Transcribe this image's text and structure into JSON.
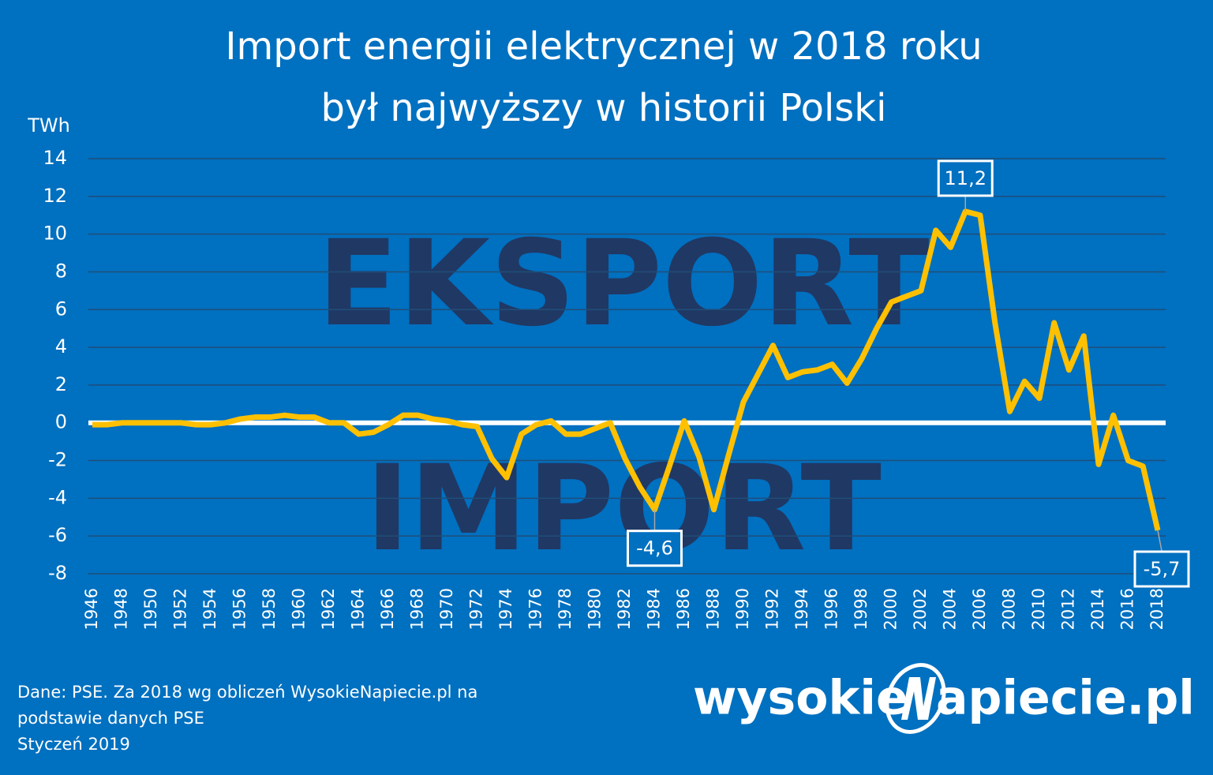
{
  "chart_data": {
    "type": "line",
    "title_lines": [
      "Import energii elektrycznej w 2018 roku",
      "był najwyższy w historii Polski"
    ],
    "y_label": "TWh",
    "watermarks": [
      "EKSPORT",
      "IMPORT"
    ],
    "source_lines": [
      "Dane: PSE. Za 2018 wg obliczeń WysokieNapiecie.pl na",
      "podstawie danych PSE",
      "Styczeń 2019"
    ],
    "logo": [
      "wysokie",
      "apiecie.pl"
    ],
    "x": [
      1946,
      1947,
      1948,
      1949,
      1950,
      1951,
      1952,
      1953,
      1954,
      1955,
      1956,
      1957,
      1958,
      1959,
      1960,
      1961,
      1962,
      1963,
      1964,
      1965,
      1966,
      1967,
      1968,
      1969,
      1970,
      1971,
      1972,
      1973,
      1974,
      1975,
      1976,
      1977,
      1978,
      1979,
      1980,
      1981,
      1982,
      1983,
      1984,
      1985,
      1986,
      1987,
      1988,
      1989,
      1990,
      1991,
      1992,
      1993,
      1994,
      1995,
      1996,
      1997,
      1998,
      1999,
      2000,
      2001,
      2002,
      2003,
      2004,
      2005,
      2006,
      2007,
      2008,
      2009,
      2010,
      2011,
      2012,
      2013,
      2014,
      2015,
      2016,
      2017,
      2018
    ],
    "series": [
      {
        "color": "#ffc000",
        "values": [
          -0.1,
          -0.1,
          0,
          0,
          0,
          0,
          0,
          -0.1,
          -0.1,
          0,
          0.2,
          0.3,
          0.3,
          0.4,
          0.3,
          0.3,
          0,
          0,
          -0.6,
          -0.5,
          -0.1,
          0.4,
          0.4,
          0.2,
          0.1,
          -0.1,
          -0.2,
          -1.9,
          -2.9,
          -0.6,
          -0.1,
          0.1,
          -0.6,
          -0.6,
          -0.3,
          0,
          -1.9,
          -3.4,
          -4.6,
          -2.3,
          0.1,
          -1.8,
          -4.6,
          -1.7,
          1.1,
          2.6,
          4.1,
          2.4,
          2.7,
          2.8,
          3.1,
          2.1,
          3.4,
          5.0,
          6.4,
          6.7,
          7.0,
          10.2,
          9.3,
          11.2,
          11.0,
          5.3,
          0.6,
          2.2,
          1.3,
          5.3,
          2.8,
          4.6,
          -2.2,
          0.4,
          -2.0,
          -2.3,
          -5.7
        ],
        "value_labels": [
          null,
          null,
          null,
          null,
          null,
          null,
          null,
          null,
          null,
          null,
          null,
          null,
          null,
          null,
          null,
          null,
          null,
          null,
          null,
          null,
          null,
          null,
          null,
          null,
          null,
          null,
          null,
          null,
          null,
          null,
          null,
          null,
          null,
          null,
          null,
          null,
          null,
          null,
          "-4,6",
          null,
          null,
          null,
          null,
          null,
          null,
          null,
          null,
          null,
          null,
          null,
          null,
          null,
          null,
          null,
          null,
          null,
          null,
          null,
          null,
          "11,2",
          null,
          null,
          null,
          null,
          null,
          null,
          null,
          null,
          null,
          null,
          null,
          null,
          "-5,7"
        ]
      }
    ],
    "xlim": [
      1946,
      2018
    ],
    "xticks": [
      1946,
      1948,
      1950,
      1952,
      1954,
      1956,
      1958,
      1960,
      1962,
      1964,
      1966,
      1968,
      1970,
      1972,
      1974,
      1976,
      1978,
      1980,
      1982,
      1984,
      1986,
      1988,
      1990,
      1992,
      1994,
      1996,
      1998,
      2000,
      2002,
      2004,
      2006,
      2008,
      2010,
      2012,
      2014,
      2016,
      2018
    ],
    "ylim": [
      -8,
      14
    ],
    "yticks": [
      -8,
      -6,
      -4,
      -2,
      0,
      2,
      4,
      6,
      8,
      10,
      12,
      14
    ],
    "grid": true
  }
}
